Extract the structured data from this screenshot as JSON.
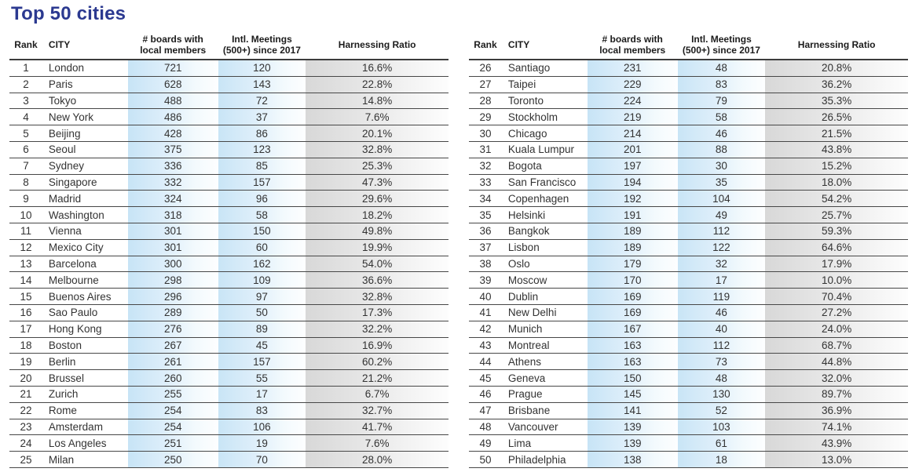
{
  "title": "Top 50 cities",
  "colors": {
    "title_text": "#2b3990",
    "blue_band": "#c8e4f6",
    "gray_band": "#d8d8d8",
    "row_line": "#474747",
    "body_text": "#333333"
  },
  "tables": [
    {
      "name": "ranks-1-25",
      "headers": {
        "rank": "Rank",
        "city": "CITY",
        "boards": "# boards with\nlocal members",
        "meetings": "Intl. Meetings\n(500+) since 2017",
        "ratio": "Harnessing Ratio"
      },
      "rows": [
        [
          1,
          "London",
          721,
          120,
          "16.6%"
        ],
        [
          2,
          "Paris",
          628,
          143,
          "22.8%"
        ],
        [
          3,
          "Tokyo",
          488,
          72,
          "14.8%"
        ],
        [
          4,
          "New York",
          486,
          37,
          "7.6%"
        ],
        [
          5,
          "Beijing",
          428,
          86,
          "20.1%"
        ],
        [
          6,
          "Seoul",
          375,
          123,
          "32.8%"
        ],
        [
          7,
          "Sydney",
          336,
          85,
          "25.3%"
        ],
        [
          8,
          "Singapore",
          332,
          157,
          "47.3%"
        ],
        [
          9,
          "Madrid",
          324,
          96,
          "29.6%"
        ],
        [
          10,
          "Washington",
          318,
          58,
          "18.2%"
        ],
        [
          11,
          "Vienna",
          301,
          150,
          "49.8%"
        ],
        [
          12,
          "Mexico City",
          301,
          60,
          "19.9%"
        ],
        [
          13,
          "Barcelona",
          300,
          162,
          "54.0%"
        ],
        [
          14,
          "Melbourne",
          298,
          109,
          "36.6%"
        ],
        [
          15,
          "Buenos Aires",
          296,
          97,
          "32.8%"
        ],
        [
          16,
          "Sao Paulo",
          289,
          50,
          "17.3%"
        ],
        [
          17,
          "Hong Kong",
          276,
          89,
          "32.2%"
        ],
        [
          18,
          "Boston",
          267,
          45,
          "16.9%"
        ],
        [
          19,
          "Berlin",
          261,
          157,
          "60.2%"
        ],
        [
          20,
          "Brussel",
          260,
          55,
          "21.2%"
        ],
        [
          21,
          "Zurich",
          255,
          17,
          "6.7%"
        ],
        [
          22,
          "Rome",
          254,
          83,
          "32.7%"
        ],
        [
          23,
          "Amsterdam",
          254,
          106,
          "41.7%"
        ],
        [
          24,
          "Los Angeles",
          251,
          19,
          "7.6%"
        ],
        [
          25,
          "Milan",
          250,
          70,
          "28.0%"
        ]
      ]
    },
    {
      "name": "ranks-26-50",
      "headers": {
        "rank": "Rank",
        "city": "CITY",
        "boards": "# boards with\nlocal members",
        "meetings": "Intl. Meetings\n(500+) since 2017",
        "ratio": "Harnessing Ratio"
      },
      "rows": [
        [
          26,
          "Santiago",
          231,
          48,
          "20.8%"
        ],
        [
          27,
          "Taipei",
          229,
          83,
          "36.2%"
        ],
        [
          28,
          "Toronto",
          224,
          79,
          "35.3%"
        ],
        [
          29,
          "Stockholm",
          219,
          58,
          "26.5%"
        ],
        [
          30,
          "Chicago",
          214,
          46,
          "21.5%"
        ],
        [
          31,
          "Kuala Lumpur",
          201,
          88,
          "43.8%"
        ],
        [
          32,
          "Bogota",
          197,
          30,
          "15.2%"
        ],
        [
          33,
          "San Francisco",
          194,
          35,
          "18.0%"
        ],
        [
          34,
          "Copenhagen",
          192,
          104,
          "54.2%"
        ],
        [
          35,
          "Helsinki",
          191,
          49,
          "25.7%"
        ],
        [
          36,
          "Bangkok",
          189,
          112,
          "59.3%"
        ],
        [
          37,
          "Lisbon",
          189,
          122,
          "64.6%"
        ],
        [
          38,
          "Oslo",
          179,
          32,
          "17.9%"
        ],
        [
          39,
          "Moscow",
          170,
          17,
          "10.0%"
        ],
        [
          40,
          "Dublin",
          169,
          119,
          "70.4%"
        ],
        [
          41,
          "New Delhi",
          169,
          46,
          "27.2%"
        ],
        [
          42,
          "Munich",
          167,
          40,
          "24.0%"
        ],
        [
          43,
          "Montreal",
          163,
          112,
          "68.7%"
        ],
        [
          44,
          "Athens",
          163,
          73,
          "44.8%"
        ],
        [
          45,
          "Geneva",
          150,
          48,
          "32.0%"
        ],
        [
          46,
          "Prague",
          145,
          130,
          "89.7%"
        ],
        [
          47,
          "Brisbane",
          141,
          52,
          "36.9%"
        ],
        [
          48,
          "Vancouver",
          139,
          103,
          "74.1%"
        ],
        [
          49,
          "Lima",
          139,
          61,
          "43.9%"
        ],
        [
          50,
          "Philadelphia",
          138,
          18,
          "13.0%"
        ]
      ]
    }
  ]
}
